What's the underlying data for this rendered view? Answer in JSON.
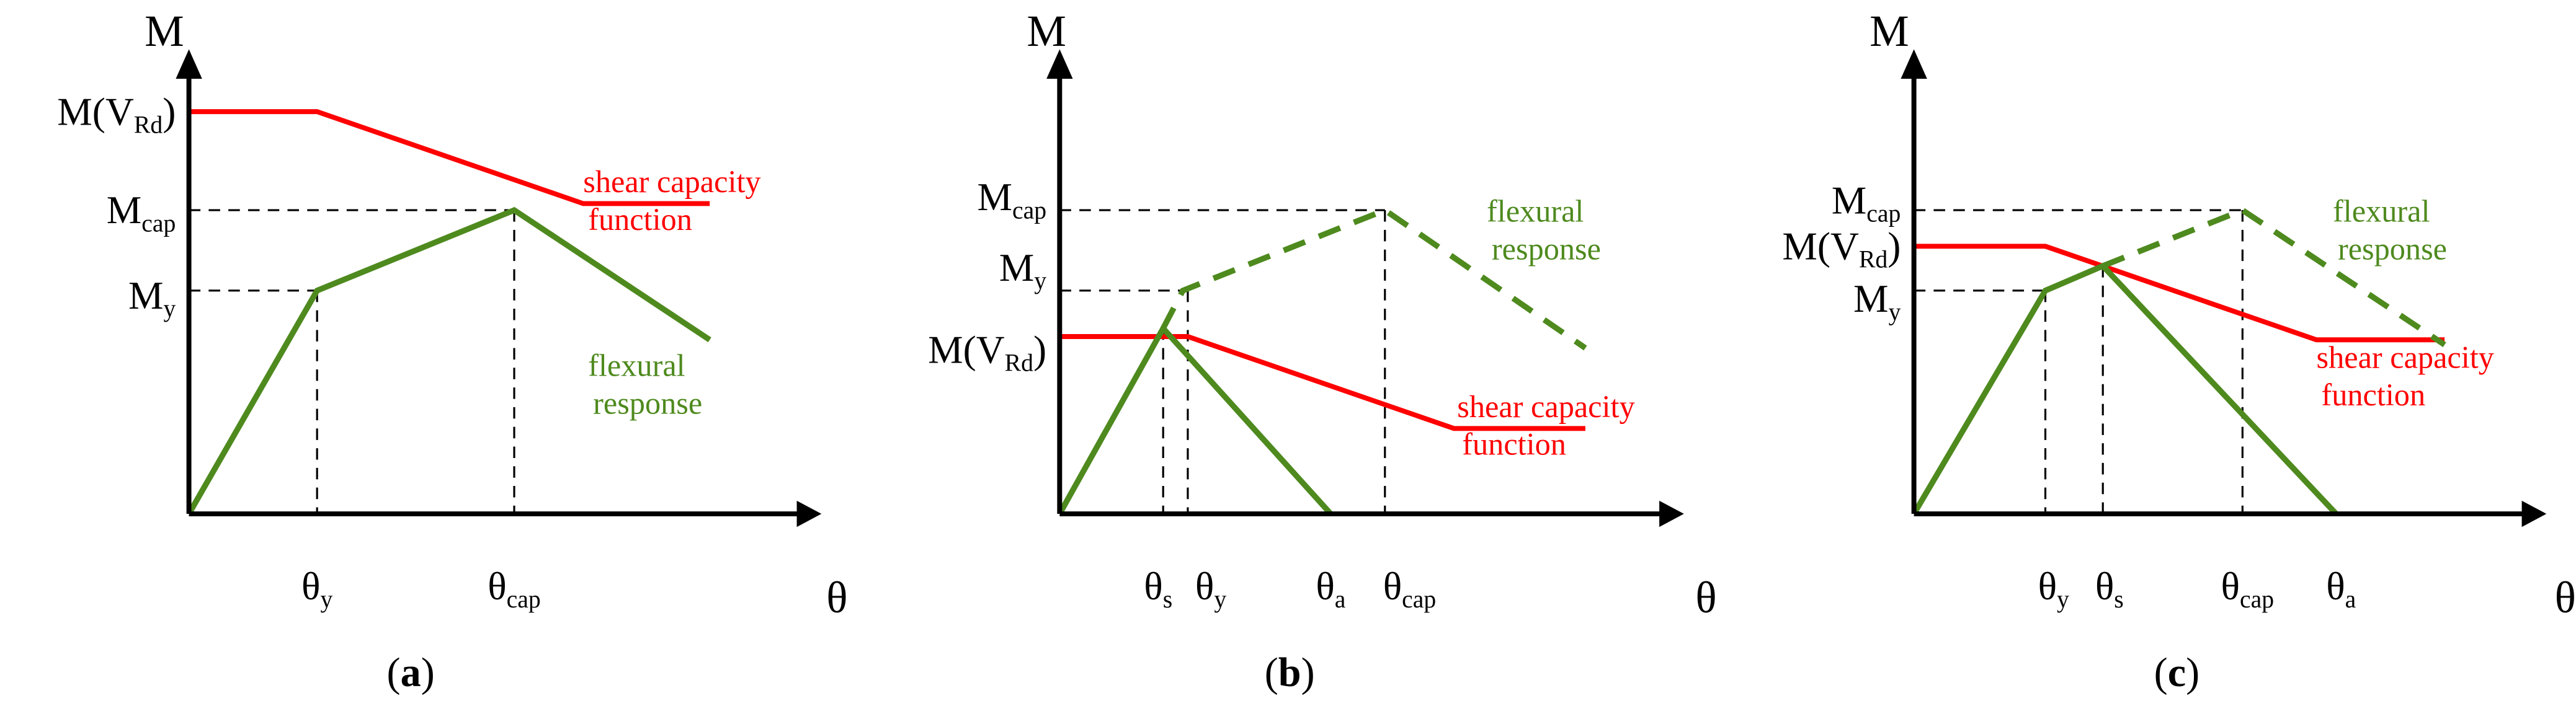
{
  "panels": [
    {
      "axis_y": "M",
      "axis_x": "θ",
      "y_labels": [
        {
          "main": "M(V",
          "sub": "Rd",
          "tail": ")"
        },
        {
          "main": "M",
          "sub": "cap"
        },
        {
          "main": "M",
          "sub": "y"
        }
      ],
      "x_labels": [
        {
          "main": "θ",
          "sub": "y"
        },
        {
          "main": "θ",
          "sub": "cap"
        }
      ],
      "annotations": [
        {
          "lines": [
            "shear capacity",
            "function"
          ]
        },
        {
          "lines": [
            "flexural",
            "response"
          ]
        }
      ],
      "caption": [
        "(",
        "a",
        ")"
      ]
    },
    {
      "axis_y": "M",
      "axis_x": "θ",
      "y_labels": [
        {
          "main": "M",
          "sub": "cap"
        },
        {
          "main": "M",
          "sub": "y"
        },
        {
          "main": "M(V",
          "sub": "Rd",
          "tail": ")"
        }
      ],
      "x_labels": [
        {
          "main": "θ",
          "sub": "s"
        },
        {
          "main": "θ",
          "sub": "y"
        },
        {
          "main": "θ",
          "sub": "a"
        },
        {
          "main": "θ",
          "sub": "cap"
        }
      ],
      "annotations": [
        {
          "lines": [
            "flexural",
            "response"
          ]
        },
        {
          "lines": [
            "shear capacity",
            "function"
          ]
        }
      ],
      "caption": [
        "(",
        "b",
        ")"
      ]
    },
    {
      "axis_y": "M",
      "axis_x": "θ",
      "y_labels": [
        {
          "main": "M",
          "sub": "cap"
        },
        {
          "main": "M(V",
          "sub": "Rd",
          "tail": ")"
        },
        {
          "main": "M",
          "sub": "y"
        }
      ],
      "x_labels": [
        {
          "main": "θ",
          "sub": "y"
        },
        {
          "main": "θ",
          "sub": "s"
        },
        {
          "main": "θ",
          "sub": "cap"
        },
        {
          "main": "θ",
          "sub": "a"
        }
      ],
      "annotations": [
        {
          "lines": [
            "flexural",
            "response"
          ]
        },
        {
          "lines": [
            "shear capacity",
            "function"
          ]
        }
      ],
      "caption": [
        "(",
        "c",
        ")"
      ]
    }
  ]
}
